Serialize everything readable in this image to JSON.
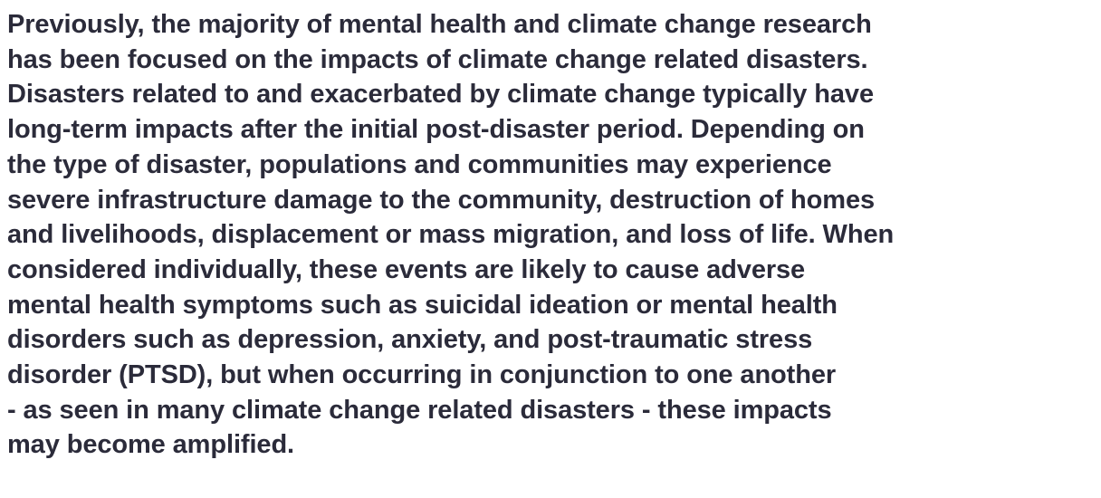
{
  "paragraph": {
    "lines": [
      "Previously, the majority of mental health and climate change research",
      "has been focused on the impacts of climate change related disasters.",
      "Disasters related to and exacerbated by climate change typically have",
      "long-term impacts after the initial post-disaster period. Depending on",
      "the type of disaster, populations and communities may experience",
      "severe infrastructure damage to the community, destruction of homes",
      "and livelihoods, displacement or mass migration, and loss of life. When",
      "considered individually, these events are likely to cause adverse",
      "mental health symptoms such as suicidal ideation or mental health",
      "disorders such as depression, anxiety, and post-traumatic stress",
      "disorder (PTSD), but when occurring in conjunction to one another",
      "- as seen in many climate change related disasters - these impacts",
      "may become amplified."
    ]
  }
}
